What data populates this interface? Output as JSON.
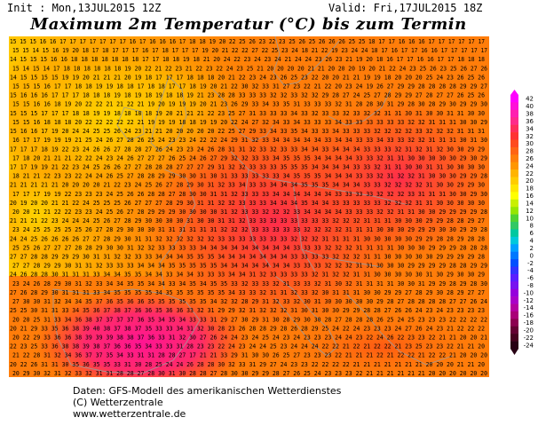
{
  "header": {
    "init": "Init : Mon,13JUL2015 12Z",
    "valid": "Valid: Fri,17JUL2015 18Z",
    "title": "Maximum 2m Temperatur (°C) bis zum Termin"
  },
  "colorbar": {
    "labels": [
      "42",
      "40",
      "38",
      "36",
      "34",
      "32",
      "30",
      "28",
      "26",
      "24",
      "22",
      "20",
      "18",
      "16",
      "14",
      "12",
      "10",
      "8",
      "6",
      "4",
      "2",
      "0",
      "-2",
      "-4",
      "-6",
      "-8",
      "-10",
      "-12",
      "-14",
      "-16",
      "-18",
      "-20",
      "-22",
      "-24"
    ],
    "colors": [
      "#ff00ff",
      "#ff10d8",
      "#ff20b0",
      "#ff2a8a",
      "#ff2d5a",
      "#ff3232",
      "#ff4a1e",
      "#ff6414",
      "#ff7e0a",
      "#ff9600",
      "#ffb400",
      "#ffcc00",
      "#ffe600",
      "#ffff00",
      "#c8f000",
      "#96e600",
      "#50d232",
      "#32c864",
      "#00c8a0",
      "#00c8dc",
      "#00a0ff",
      "#0078ff",
      "#0050ff",
      "#3232ff",
      "#5a1eff",
      "#7814f0",
      "#9600dc",
      "#aa00c8",
      "#b400a0",
      "#aa0078",
      "#8c0050",
      "#640032",
      "#46001e",
      "#280014"
    ]
  },
  "map": {
    "rows": [
      "15 15 15 16 16 17 17 17 17 17 17 17 16 17 16 16 16 17 18 18 19 20 22 25 26 23 22 23 25 26 25 26 26 26 25 25 18 17 17 16 16 16 17 17 17 17 17 17",
      "15 15 14 15 16 19 20 18 17 18 17 17 17 16 17 18 17 17 17 19 20 21 22 22 27 22 25 23 24 18 21 22 19 23 24 24 18 17 16 17 17 16 16 17 17 17 17 17",
      "14 15 15 15 16 16 18 18 18 18 18 18 18 17 17 18 18 19 18 21 20 24 22 23 24 23 24 21 24 24 23 26 23 21 19 20 18 16 17 17 16 16 17 17 18 18 18",
      "15 14 15 14 17 18 18 18 18 18 18 19 20 22 21 22 23 21 22 23 22 24 23 25 21 20 20 20 20 21 21 20 20 20 19 20 21 22 24 23 25 26 23 25 26 27 26",
      "14 15 15 15 15 19 19 20 21 21 21 20 19 18 17 17 17 18 18 18 20 21 22 23 24 23 26 25 23 22 20 20 21 21 19 19 18 20 20 20 25 24 23 26 25 26",
      "15 15 15 16 17 17 18 18 19 19 18 18 17 18 18 17 17 18 19 20 21 22 30 32 33 31 27 23 22 21 22 20 23 24 19 26 27 29 29 28 28 28 28 29 29 27",
      "15 16 16 16 17 17 17 18 18 18 19 18 19 18 19 18 18 19 21 23 28 28 33 33 33 32 32 33 32 32 29 28 27 24 25 27 28 29 29 27 28 27 27 26 25 26",
      "15 15 16 16 18 19 20 22 22 21 21 22 21 19 20 19 19 19 20 21 23 26 29 33 34 33 35 31 33 33 33 32 31 28 28 30 31 29 28 30 28 29 30 29 29 30",
      "15 15 15 17 17 17 18 18 19 19 18 18 18 18 19 20 21 21 21 22 23 25 27 31 33 33 33 34 33 32 33 33 32 33 32 32 31 31 30 31 30 30 31 31 30 30",
      "15 15 16 18 18 18 20 22 22 22 22 22 21 19 19 19 18 18 19 19 20 22 24 27 32 34 33 34 33 33 33 34 33 33 33 33 33 33 32 32 31 31 31 30 30 29",
      "15 16 16 17 19 20 24 24 25 25 26 24 23 21 21 20 20 20 20 20 22 25 27 29 33 34 33 35 34 33 33 34 33 33 33 32 32 32 32 33 32 32 32 31 31 31",
      "16 17 17 19 19 19 21 25 24 26 27 28 26 25 24 23 23 24 22 22 24 29 31 32 33 34 34 34 34 34 33 34 34 33 33 34 33 33 32 32 31 31 31 30 31 30",
      "17 17 17 18 19 22 23 24 26 26 27 28 28 27 26 24 23 23 24 26 28 31 31 32 33 32 33 33 34 34 33 34 34 34 33 33 33 32 31 32 31 32 30 30 29 29",
      "17 18 20 21 21 21 22 22 24 23 24 26 27 27 27 26 25 24 26 27 29 32 32 33 33 34 35 35 35 34 34 34 34 33 33 32 31 31 30 30 30 30 30 29 30 29",
      "17 17 19 19 21 22 23 24 25 26 26 27 27 28 28 28 27 27 27 29 31 32 32 33 33 33 35 35 35 34 34 34 34 33 33 32 31 31 30 30 31 31 30 30 30 30",
      "18 21 21 22 23 23 22 24 24 26 25 27 28 28 29 29 30 30 31 30 31 33 33 33 33 33 34 35 35 35 34 34 34 33 33 32 31 32 32 31 30 30 30 29 29 28",
      "21 21 21 21 21 20 20 20 20 21 22 23 24 25 26 27 28 29 30 31 32 33 34 33 33 34 34 34 35 35 35 34 34 34 33 33 32 32 32 32 31 30 30 29 29 30",
      "17 17 17 19 19 22 23 23 23 24 25 26 26 28 28 27 28 30 30 31 31 32 33 33 33 34 34 34 34 34 34 33 33 33 33 32 32 32 33 31 31 31 30 30 29 30",
      "20 19 20 20 21 21 22 24 25 25 25 26 27 27 27 28 29 30 31 31 32 32 33 33 33 34 34 34 35 34 34 33 33 33 33 33 32 32 32 31 31 30 30 30 30 30",
      "20 20 21 21 22 22 23 23 24 25 26 27 28 29 29 29 30 30 30 30 31 32 33 33 32 32 32 33 34 34 34 34 33 33 33 32 32 31 31 30 30 29 29 29 29 28",
      "21 21 21 22 23 24 24 24 25 26 27 28 29 30 30 30 30 31 30 30 31 31 32 33 33 33 33 33 33 33 33 32 32 32 31 31 31 30 30 30 29 29 28 28 29 27",
      "23 24 25 25 25 25 25 26 27 28 29 30 30 30 31 31 31 31 31 31 32 32 32 33 33 33 33 33 32 32 32 32 31 31 31 30 30 30 29 29 29 30 30 29 29 28",
      "24 24 25 26 26 26 26 27 27 28 29 30 31 31 32 32 32 32 32 32 33 33 33 33 33 33 33 32 32 32 31 31 31 31 30 30 30 30 30 29 29 28 28 29 28 28",
      "25 25 26 27 27 27 28 28 29 30 30 31 32 32 33 33 33 33 34 34 34 34 34 34 34 34 34 33 33 33 32 32 32 31 31 31 31 30 30 30 29 29 29 28 28 28",
      "27 27 28 28 29 29 29 30 31 31 32 32 33 33 34 34 34 35 35 35 34 34 34 34 34 34 34 33 33 33 33 32 32 32 31 31 30 30 30 30 30 29 29 29 29 28",
      "27 27 28 29 29 30 31 31 32 33 33 33 34 34 34 35 35 35 35 35 34 34 34 34 34 34 34 33 33 33 32 32 32 31 31 30 30 30 29 29 29 29 28 28 29 29",
      "24 26 28 28 30 31 31 31 33 34 34 35 35 34 34 33 34 34 33 33 33 34 34 31 32 33 33 33 33 32 31 32 32 31 31 30 30 30 30 30 31 30 29 30 30 29",
      "23 24 26 28 29 30 31 32 33 34 34 35 35 34 34 33 34 35 34 35 35 33 32 33 33 32 31 33 33 32 31 30 32 31 31 31 31 30 30 31 29 29 28 29 28 30",
      "27 26 28 29 30 31 31 31 33 34 35 35 35 35 34 35 35 35 35 35 35 34 33 33 32 31 31 32 33 32 30 31 31 31 30 30 29 29 27 28 29 30 28 29 27 27",
      "27 30 30 31 32 34 34 35 37 36 35 36 36 35 35 35 35 35 35 34 32 32 28 29 31 32 33 32 30 31 30 30 30 30 30 29 28 27 28 28 28 28 27 27 26 24",
      "25 25 30 31 31 33 34 35 36 37 38 37 36 36 35 36 36 33 32 31 29 29 32 31 32 32 32 31 30 31 30 30 29 29 28 28 27 26 26 24 23 24 23 23 23 23",
      "20 20 25 31 33 34 36 38 37 37 37 37 36 35 34 35 34 33 33 31 29 27 30 29 31 30 28 29 30 30 28 27 28 28 28 26 25 24 25 23 23 23 22 22 22 22",
      "20 21 29 33 35 36 38 39 40 38 37 38 37 35 33 33 34 31 32 30 28 23 26 28 28 29 28 26 28 29 25 24 22 24 23 23 23 24 27 26 24 23 21 22 22 22",
      "20 22 29 33 36 36 38 39 39 39 38 38 37 36 33 31 32 30 27 26 24 24 23 24 25 24 23 24 23 23 23 24 24 23 22 24 26 22 23 23 22 21 21 20 20 21",
      "22 23 25 33 36 38 38 39 38 37 36 36 35 34 33 33 31 28 23 23 22 24 23 24 24 25 23 24 24 24 22 22 21 22 21 22 22 21 23 25 23 23 22 21 21 20",
      "21 22 28 31 32 34 36 37 37 35 34 33 31 31 28 28 27 17 21 21 33 29 31 30 30 26 25 27 23 23 23 22 21 21 21 22 21 22 22 21 22 22 21 20 20 20",
      "20 22 26 31 31 30 35 36 35 35 33 31 30 28 25 24 24 26 28 28 30 32 33 31 29 27 24 23 23 22 22 22 22 21 21 21 21 21 21 21 20 20 20 21 21 20",
      "20 29 30 32 31 32 33 32 31 31 28 28 27 28 30 31 30 28 28 27 28 30 30 29 29 28 27 26 25 24 23 23 23 22 21 21 21 21 21 21 20 20 20 20 20 20"
    ]
  },
  "footer": {
    "line1": "Daten: GFS-Modell des amerikanischen Wetterdienstes",
    "line2": "(C) Wetterzentrale",
    "line3": "www.wetterzentrale.de"
  }
}
